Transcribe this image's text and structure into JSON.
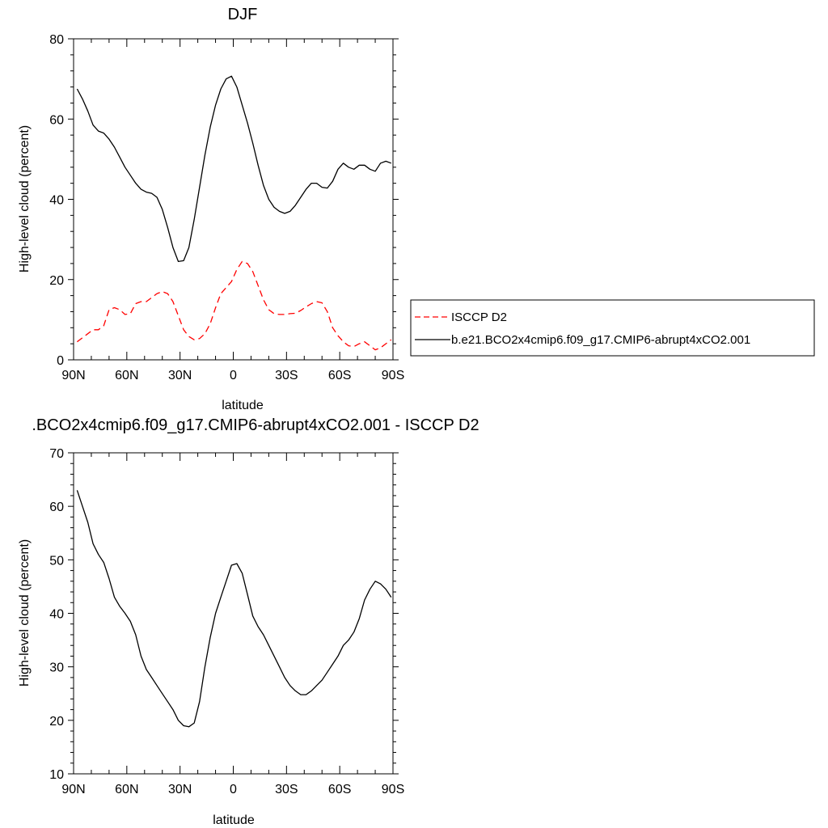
{
  "chart_data": [
    {
      "type": "line",
      "title": "DJF",
      "xlabel": "latitude",
      "ylabel": "High-level cloud (percent)",
      "xlim": [
        -90,
        90
      ],
      "ylim": [
        0,
        80
      ],
      "x_ticks": [
        -90,
        -60,
        -30,
        0,
        30,
        60,
        90
      ],
      "x_tick_labels": [
        "90N",
        "60N",
        "30N",
        "0",
        "30S",
        "60S",
        "90S"
      ],
      "y_ticks": [
        0,
        20,
        40,
        60,
        80
      ],
      "y_tick_labels": [
        "0",
        "20",
        "40",
        "60",
        "80"
      ],
      "legend_position": "right",
      "series": [
        {
          "name": "ISCCP D2",
          "color": "#ff0000",
          "style": "dashed",
          "x": [
            -88,
            -85,
            -82,
            -79,
            -76,
            -73,
            -70,
            -67,
            -64,
            -61,
            -58,
            -55,
            -52,
            -49,
            -46,
            -43,
            -40,
            -37,
            -34,
            -31,
            -28,
            -25,
            -22,
            -19,
            -16,
            -13,
            -10,
            -7,
            -4,
            -1,
            2,
            5,
            8,
            11,
            14,
            17,
            20,
            23,
            26,
            29,
            32,
            35,
            38,
            41,
            44,
            47,
            50,
            53,
            56,
            59,
            62,
            65,
            68,
            71,
            74,
            77,
            80,
            83,
            86,
            89
          ],
          "y": [
            4.5,
            5.5,
            6.5,
            7.5,
            7.5,
            8.5,
            12.5,
            13.0,
            12.5,
            11.3,
            11.5,
            14.0,
            14.5,
            14.5,
            15.5,
            16.5,
            17.0,
            16.5,
            14.5,
            11.0,
            7.5,
            5.8,
            5.0,
            5.3,
            6.5,
            9.0,
            13.0,
            16.5,
            18.0,
            19.5,
            22.5,
            24.5,
            24.0,
            22.0,
            18.5,
            15.0,
            12.5,
            11.5,
            11.3,
            11.3,
            11.5,
            11.6,
            12.3,
            13.2,
            14.0,
            14.5,
            14.2,
            12.0,
            8.0,
            6.0,
            4.5,
            3.5,
            3.3,
            4.0,
            4.5,
            3.5,
            2.5,
            3.0,
            4.0,
            5.0
          ]
        },
        {
          "name": "b.e21.BCO2x4cmip6.f09_g17.CMIP6-abrupt4xCO2.001",
          "color": "#000000",
          "style": "solid",
          "x": [
            -88,
            -85,
            -82,
            -79,
            -76,
            -73,
            -70,
            -67,
            -64,
            -61,
            -58,
            -55,
            -52,
            -49,
            -46,
            -43,
            -40,
            -37,
            -34,
            -31,
            -28,
            -25,
            -22,
            -19,
            -16,
            -13,
            -10,
            -7,
            -4,
            -1,
            2,
            5,
            8,
            11,
            14,
            17,
            20,
            23,
            26,
            29,
            32,
            35,
            38,
            41,
            44,
            47,
            50,
            53,
            56,
            59,
            62,
            65,
            68,
            71,
            74,
            77,
            80,
            83,
            86,
            89
          ],
          "y": [
            67.5,
            65.0,
            62.0,
            58.5,
            57.0,
            56.5,
            55.0,
            53.0,
            50.5,
            48.0,
            46.0,
            44.0,
            42.5,
            41.8,
            41.5,
            40.5,
            37.5,
            33.0,
            28.0,
            24.5,
            24.7,
            28.0,
            35.0,
            43.0,
            51.0,
            58.0,
            63.5,
            67.5,
            70.0,
            70.7,
            68.0,
            63.5,
            59.0,
            54.0,
            48.5,
            43.5,
            40.0,
            38.0,
            37.0,
            36.5,
            37.0,
            38.5,
            40.5,
            42.5,
            44.0,
            44.0,
            43.0,
            42.8,
            44.5,
            47.5,
            49.0,
            48.0,
            47.5,
            48.5,
            48.5,
            47.5,
            47.0,
            49.0,
            49.5,
            49.0
          ]
        }
      ]
    },
    {
      "type": "line",
      "title": ".BCO2x4cmip6.f09_g17.CMIP6-abrupt4xCO2.001 - ISCCP D2",
      "xlabel": "latitude",
      "ylabel": "High-level cloud (percent)",
      "xlim": [
        -90,
        90
      ],
      "ylim": [
        10,
        70
      ],
      "x_ticks": [
        -90,
        -60,
        -30,
        0,
        30,
        60,
        90
      ],
      "x_tick_labels": [
        "90N",
        "60N",
        "30N",
        "0",
        "30S",
        "60S",
        "90S"
      ],
      "y_ticks": [
        10,
        20,
        30,
        40,
        50,
        60,
        70
      ],
      "y_tick_labels": [
        "10",
        "20",
        "30",
        "40",
        "50",
        "60",
        "70"
      ],
      "series": [
        {
          "name": "",
          "color": "#000000",
          "style": "solid",
          "x": [
            -88,
            -85,
            -82,
            -79,
            -76,
            -73,
            -70,
            -67,
            -64,
            -61,
            -58,
            -55,
            -52,
            -49,
            -46,
            -43,
            -40,
            -37,
            -34,
            -31,
            -28,
            -25,
            -22,
            -19,
            -16,
            -13,
            -10,
            -7,
            -4,
            -1,
            2,
            5,
            8,
            11,
            14,
            17,
            20,
            23,
            26,
            29,
            32,
            35,
            38,
            41,
            44,
            47,
            50,
            53,
            56,
            59,
            62,
            65,
            68,
            71,
            74,
            77,
            80,
            83,
            86,
            89
          ],
          "y": [
            63.0,
            60.0,
            57.0,
            53.0,
            51.0,
            49.5,
            46.5,
            43.0,
            41.3,
            40.0,
            38.5,
            36.0,
            32.0,
            29.5,
            28.0,
            26.5,
            25.0,
            23.5,
            22.0,
            20.0,
            19.0,
            18.8,
            19.5,
            23.5,
            30.0,
            35.5,
            40.0,
            43.0,
            46.0,
            49.0,
            49.3,
            47.5,
            43.5,
            39.5,
            37.5,
            36.0,
            34.0,
            32.0,
            30.0,
            28.0,
            26.5,
            25.5,
            24.8,
            24.8,
            25.5,
            26.5,
            27.5,
            29.0,
            30.5,
            32.0,
            34.0,
            35.0,
            36.5,
            39.0,
            42.5,
            44.5,
            46.0,
            45.5,
            44.5,
            43.0
          ]
        }
      ]
    }
  ]
}
